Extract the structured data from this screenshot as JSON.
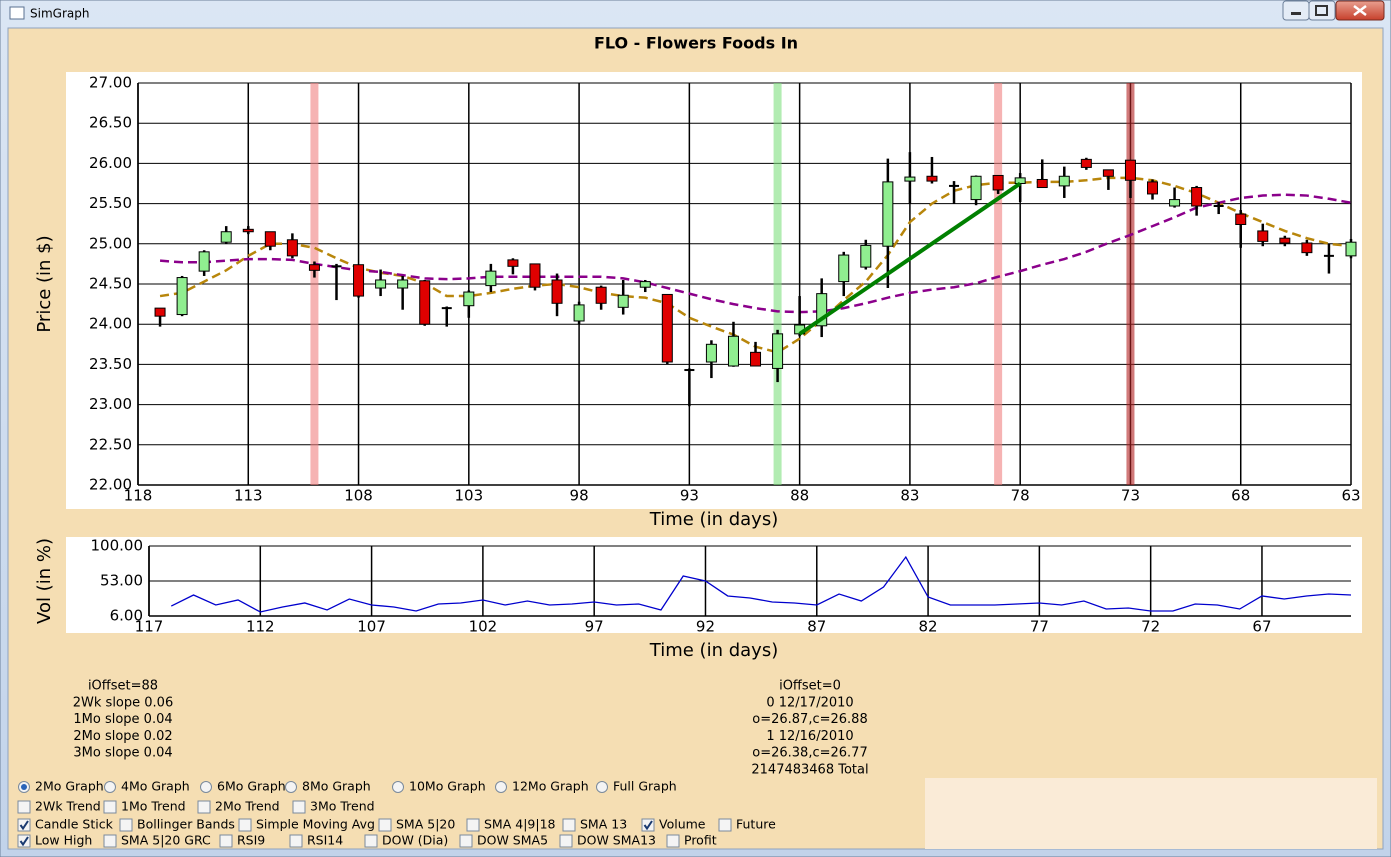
{
  "window": {
    "title": "SimGraph"
  },
  "chart_data": [
    {
      "type": "candlestick",
      "title": "FLO - Flowers Foods In",
      "x_label": "Time (in days)",
      "y_label": "Price (in $)",
      "xlim": [
        118,
        63
      ],
      "xticks": [
        118,
        113,
        108,
        103,
        98,
        93,
        88,
        83,
        78,
        73,
        68,
        63
      ],
      "ylim": [
        22,
        27
      ],
      "yticks": [
        {
          "value": 22,
          "label": "22.00"
        },
        {
          "value": 22.5,
          "label": "22.50"
        },
        {
          "value": 23,
          "label": "23.00"
        },
        {
          "value": 23.5,
          "label": "23.50"
        },
        {
          "value": 24,
          "label": "24.00"
        },
        {
          "value": 24.5,
          "label": "24.50"
        },
        {
          "value": 25,
          "label": "25.00"
        },
        {
          "value": 25.5,
          "label": "25.50"
        },
        {
          "value": 26,
          "label": "26.00"
        },
        {
          "value": 26.5,
          "label": "26.50"
        },
        {
          "value": 27,
          "label": "27.00"
        }
      ],
      "grid": true,
      "up_color": "#90ee90",
      "down_color": "#e00000",
      "flat_color": "#000000",
      "x": [
        117,
        116,
        115,
        114,
        113,
        112,
        111,
        110,
        109,
        108,
        107,
        106,
        105,
        104,
        103,
        102,
        101,
        100,
        99,
        98,
        97,
        96,
        95,
        94,
        93,
        92,
        91,
        90,
        89,
        88,
        87,
        86,
        85,
        84,
        83,
        82,
        81,
        80,
        79,
        78,
        77,
        76,
        75,
        74,
        73,
        72,
        71,
        70,
        69,
        68,
        67,
        66,
        65,
        64,
        63
      ],
      "open": [
        24.2,
        24.12,
        24.66,
        25.02,
        25.18,
        25.15,
        25.05,
        24.74,
        24.72,
        24.74,
        24.45,
        24.45,
        24.54,
        24.2,
        24.23,
        24.48,
        24.8,
        24.75,
        24.55,
        24.04,
        24.46,
        24.21,
        24.46,
        24.37,
        23.43,
        23.53,
        23.48,
        23.65,
        23.45,
        23.88,
        23.98,
        24.53,
        24.71,
        24.97,
        25.78,
        25.84,
        25.72,
        25.55,
        25.85,
        25.75,
        25.8,
        25.72,
        26.05,
        25.92,
        26.04,
        25.77,
        25.47,
        25.7,
        25.47,
        25.37,
        25.16,
        25.07,
        25.01,
        24.85,
        24.85
      ],
      "high": [
        24.2,
        24.6,
        24.92,
        25.22,
        25.22,
        25.15,
        25.13,
        24.78,
        24.75,
        24.74,
        24.68,
        24.6,
        24.55,
        24.22,
        24.42,
        24.75,
        24.82,
        24.75,
        24.63,
        24.28,
        24.48,
        24.55,
        24.55,
        24.37,
        23.45,
        23.8,
        24.03,
        23.78,
        23.93,
        24.35,
        24.57,
        24.9,
        25.05,
        26.06,
        26.14,
        26.08,
        25.78,
        25.85,
        25.85,
        25.88,
        26.05,
        25.96,
        26.07,
        25.92,
        26.04,
        25.8,
        25.7,
        25.72,
        25.52,
        25.42,
        25.25,
        25.1,
        25.05,
        25.0,
        25.06
      ],
      "low": [
        23.97,
        24.1,
        24.6,
        25.0,
        25.12,
        24.92,
        24.82,
        24.58,
        24.3,
        24.33,
        24.35,
        24.18,
        23.98,
        23.97,
        24.08,
        24.4,
        24.62,
        24.42,
        24.1,
        24.0,
        24.18,
        24.12,
        24.4,
        23.5,
        22.98,
        23.33,
        23.47,
        23.48,
        23.28,
        23.85,
        23.84,
        24.35,
        24.68,
        24.45,
        25.5,
        25.75,
        25.5,
        25.48,
        25.62,
        25.52,
        25.7,
        25.57,
        25.92,
        25.67,
        25.57,
        25.55,
        25.45,
        25.35,
        25.37,
        24.95,
        24.97,
        24.97,
        24.85,
        24.63,
        24.82
      ],
      "close": [
        24.1,
        24.58,
        24.9,
        25.15,
        25.15,
        24.97,
        24.85,
        24.67,
        24.72,
        24.35,
        24.55,
        24.55,
        24.0,
        24.2,
        24.4,
        24.66,
        24.72,
        24.46,
        24.26,
        24.24,
        24.26,
        24.36,
        24.53,
        23.53,
        23.43,
        23.75,
        23.85,
        23.48,
        23.88,
        23.99,
        24.38,
        24.86,
        24.98,
        25.77,
        25.83,
        25.78,
        25.72,
        25.84,
        25.67,
        25.82,
        25.7,
        25.84,
        25.95,
        25.84,
        25.79,
        25.62,
        25.55,
        25.47,
        25.47,
        25.24,
        25.03,
        25.01,
        24.89,
        24.85,
        25.02
      ],
      "overlays": [
        {
          "color": "#b8860b",
          "values": [
            24.35,
            24.39,
            24.53,
            24.67,
            24.85,
            25.0,
            25.0,
            24.95,
            24.82,
            24.7,
            24.64,
            24.6,
            24.51,
            24.35,
            24.35,
            24.39,
            24.44,
            24.48,
            24.5,
            24.46,
            24.39,
            24.35,
            24.33,
            24.26,
            24.08,
            23.97,
            23.87,
            23.72,
            23.65,
            23.82,
            24.05,
            24.3,
            24.53,
            24.86,
            25.27,
            25.5,
            25.66,
            25.73,
            25.76,
            25.76,
            25.77,
            25.77,
            25.79,
            25.82,
            25.82,
            25.79,
            25.72,
            25.63,
            25.51,
            25.38,
            25.27,
            25.16,
            25.07,
            25.0,
            24.97
          ]
        },
        {
          "color": "#8b008b",
          "values": [
            24.79,
            24.77,
            24.77,
            24.79,
            24.81,
            24.81,
            24.8,
            24.75,
            24.71,
            24.67,
            24.65,
            24.61,
            24.57,
            24.56,
            24.57,
            24.59,
            24.59,
            24.59,
            24.59,
            24.59,
            24.59,
            24.57,
            24.52,
            24.45,
            24.38,
            24.31,
            24.25,
            24.2,
            24.16,
            24.15,
            24.16,
            24.2,
            24.26,
            24.33,
            24.39,
            24.43,
            24.46,
            24.51,
            24.59,
            24.66,
            24.74,
            24.81,
            24.9,
            25.01,
            25.11,
            25.22,
            25.33,
            25.45,
            25.51,
            25.57,
            25.6,
            25.61,
            25.6,
            25.56,
            25.51
          ]
        }
      ],
      "highlights": [
        {
          "x": 110,
          "color": "#f08080"
        },
        {
          "x": 89,
          "color": "#7ee07e"
        },
        {
          "x": 79,
          "color": "#f08080"
        },
        {
          "x": 73,
          "color": "#b22222"
        }
      ],
      "trend": {
        "color": "#008000",
        "x": [
          88,
          78
        ],
        "y": [
          23.88,
          25.75
        ]
      }
    },
    {
      "type": "line",
      "x_label": "Time (in days)",
      "y_label": "Vol (in %)",
      "xlim": [
        117,
        63
      ],
      "xticks": [
        117,
        112,
        107,
        102,
        97,
        92,
        87,
        82,
        77,
        72,
        67
      ],
      "ylim": [
        6,
        100
      ],
      "yticks": [
        {
          "value": 6,
          "label": "6.00"
        },
        {
          "value": 53,
          "label": "53.00"
        },
        {
          "value": 100,
          "label": "100.00"
        }
      ],
      "grid": true,
      "x": [
        116,
        115,
        114,
        113,
        112,
        111,
        110,
        109,
        108,
        107,
        106,
        105,
        104,
        103,
        102,
        101,
        100,
        99,
        98,
        97,
        96,
        95,
        94,
        93,
        92,
        91,
        90,
        89,
        88,
        87,
        86,
        85,
        84,
        83,
        82,
        81,
        80,
        79,
        78,
        77,
        76,
        75,
        74,
        73,
        72,
        71,
        70,
        69,
        68,
        67,
        66,
        65,
        64,
        63
      ],
      "series": [
        {
          "color": "#0000cd",
          "values": [
            19.4,
            34.2,
            20.8,
            27.5,
            11.4,
            18.1,
            23.5,
            14.1,
            28.8,
            20.8,
            18.1,
            12.7,
            22.1,
            23.5,
            27.5,
            20.8,
            26.1,
            20.8,
            22.1,
            24.8,
            20.8,
            22.1,
            14.1,
            59.7,
            53.0,
            32.9,
            30.2,
            24.8,
            23.5,
            20.8,
            35.5,
            26.1,
            44.9,
            85.2,
            31.5,
            20.8,
            20.8,
            20.8,
            22.1,
            23.5,
            20.8,
            26.1,
            15.4,
            16.7,
            12.7,
            12.7,
            22.1,
            20.8,
            15.4,
            32.9,
            28.8,
            32.9,
            35.5,
            34.2
          ]
        }
      ]
    }
  ],
  "info": {
    "left": [
      "iOffset=88",
      "2Wk slope 0.06",
      "1Mo slope 0.04",
      "2Mo slope 0.02",
      "3Mo slope 0.04"
    ],
    "right": [
      "iOffset=0",
      "0 12/17/2010",
      "o=26.87,c=26.88",
      "1 12/16/2010",
      "o=26.38,c=26.77",
      "2147483468 Total"
    ]
  },
  "controls": [
    {
      "kind": "radio",
      "items": [
        {
          "label": "2Mo Graph",
          "checked": true
        },
        {
          "label": "4Mo Graph",
          "checked": false
        },
        {
          "label": "6Mo Graph",
          "checked": false
        },
        {
          "label": "8Mo Graph",
          "checked": false
        },
        {
          "label": "10Mo Graph",
          "checked": false
        },
        {
          "label": "12Mo Graph",
          "checked": false
        },
        {
          "label": "Full Graph",
          "checked": false
        }
      ]
    },
    {
      "kind": "checkbox",
      "items": [
        {
          "label": "2Wk Trend",
          "checked": false
        },
        {
          "label": "1Mo Trend",
          "checked": false
        },
        {
          "label": "2Mo Trend",
          "checked": false
        },
        {
          "label": "3Mo Trend",
          "checked": false
        }
      ]
    },
    {
      "kind": "checkbox",
      "items": [
        {
          "label": "Candle Stick",
          "checked": true
        },
        {
          "label": "Bollinger Bands",
          "checked": false
        },
        {
          "label": "Simple Moving Avg",
          "checked": false
        },
        {
          "label": "SMA 5|20",
          "checked": false
        },
        {
          "label": "SMA 4|9|18",
          "checked": false
        },
        {
          "label": "SMA 13",
          "checked": false
        },
        {
          "label": "Volume",
          "checked": true
        },
        {
          "label": "Future",
          "checked": false
        }
      ]
    },
    {
      "kind": "checkbox",
      "items": [
        {
          "label": "Low High",
          "checked": true
        },
        {
          "label": "SMA 5|20 GRC",
          "checked": false
        },
        {
          "label": "RSI9",
          "checked": false
        },
        {
          "label": "RSI14",
          "checked": false
        },
        {
          "label": "DOW (Dia)",
          "checked": false
        },
        {
          "label": "DOW SMA5",
          "checked": false
        },
        {
          "label": "DOW SMA13",
          "checked": false
        },
        {
          "label": "Profit",
          "checked": false
        }
      ]
    }
  ]
}
